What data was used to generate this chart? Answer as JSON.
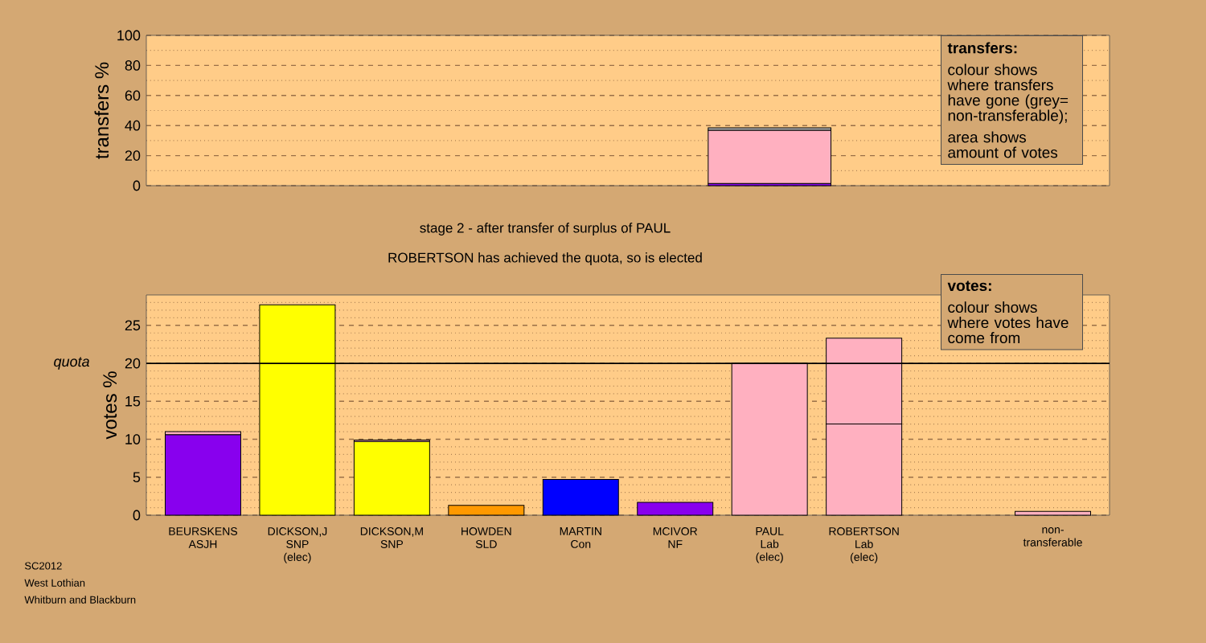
{
  "chart_data": [
    {
      "type": "bar",
      "ylabel": "transfers %",
      "categories": [
        null,
        null,
        null,
        null,
        null,
        null,
        null,
        null,
        null,
        null
      ],
      "stacked": true,
      "ylim": [
        0,
        100
      ],
      "yticks": [
        0,
        {
          "value": 10,
          "label": null
        },
        20,
        {
          "value": 30,
          "label": null
        },
        40,
        {
          "value": 50,
          "label": null
        },
        60,
        {
          "value": 70,
          "label": null
        },
        80,
        {
          "value": 90,
          "label": null
        },
        100
      ],
      "grid": "y",
      "tick_labels": "y",
      "series": [
        {
          "color": "#8800ee",
          "values": [
            null,
            null,
            null,
            null,
            null,
            null,
            1.5,
            null,
            null,
            null
          ]
        },
        {
          "color": "#ffb0c0",
          "values": [
            null,
            null,
            null,
            null,
            null,
            null,
            35.4,
            null,
            null,
            null
          ]
        },
        {
          "color": "#b0b0b0",
          "values": [
            null,
            null,
            null,
            null,
            null,
            null,
            1.6,
            null,
            null,
            null
          ]
        }
      ],
      "annotations": [
        "transfers:",
        "colour shows where transfers have gone (grey= non-transferable);",
        "area shows amount of votes"
      ]
    },
    {
      "type": "bar",
      "title": "stage 2 - after transfer of surplus of PAUL",
      "subtitle": "ROBERTSON has achieved the quota, so is elected",
      "ylabel": "votes %",
      "categories": [
        "BEURSKENS\nASJH",
        "DICKSON,J\nSNP\n(elec)",
        "DICKSON,M\nSNP",
        "HOWDEN\nSLD",
        "MARTIN\nCon",
        "MCIVOR\nNF",
        "PAUL\nLab\n(elec)",
        "ROBERTSON\nLab\n(elec)",
        null,
        "non-\ntransferable"
      ],
      "stacked": true,
      "ylim": [
        0,
        29
      ],
      "yticks": [
        0,
        {
          "value": 1,
          "label": null
        },
        {
          "value": 2,
          "label": null
        },
        {
          "value": 3,
          "label": null
        },
        {
          "value": 4,
          "label": null
        },
        5,
        {
          "value": 6,
          "label": null
        },
        {
          "value": 7,
          "label": null
        },
        {
          "value": 8,
          "label": null
        },
        {
          "value": 9,
          "label": null
        },
        10,
        {
          "value": 11,
          "label": null
        },
        {
          "value": 12,
          "label": null
        },
        {
          "value": 13,
          "label": null
        },
        {
          "value": 14,
          "label": null
        },
        15,
        {
          "value": 16,
          "label": null
        },
        {
          "value": 17,
          "label": null
        },
        {
          "value": 18,
          "label": null
        },
        {
          "value": 19,
          "label": null
        },
        20,
        {
          "value": 21,
          "label": null
        },
        {
          "value": 22,
          "label": null
        },
        {
          "value": 23,
          "label": null
        },
        {
          "value": 24,
          "label": null
        },
        25,
        {
          "value": 26,
          "label": null
        },
        {
          "value": 27,
          "label": null
        },
        {
          "value": 28,
          "label": null
        }
      ],
      "grid": "y",
      "series": [
        {
          "colors": [
            "#8800ee",
            "#ffff00",
            "#ffff00",
            "#ff9900",
            "#0000ff",
            "#8800ee",
            "#ffb0c0",
            "#ffb0c0",
            null,
            null
          ],
          "values": [
            10.6,
            27.7,
            9.7,
            1.3,
            4.7,
            1.7,
            20.0,
            12.0,
            null,
            null
          ]
        },
        {
          "color": "#ffb0c0",
          "values": [
            0.4,
            null,
            0.2,
            null,
            null,
            null,
            null,
            11.3,
            null,
            0.5
          ]
        }
      ],
      "ref_lines": [
        {
          "axis": "y",
          "value": 20,
          "label": "quota"
        }
      ],
      "annotations": [
        "votes:",
        "colour shows where votes have come from",
        "SC2012",
        "West Lothian",
        "Whitburn and Blackburn"
      ]
    }
  ]
}
